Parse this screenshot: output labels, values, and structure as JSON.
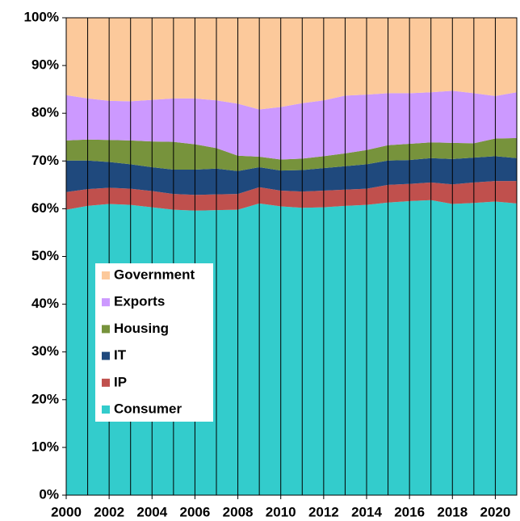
{
  "chart_data": {
    "type": "stacked_area",
    "x": [
      2000,
      2001,
      2002,
      2003,
      2004,
      2005,
      2006,
      2007,
      2008,
      2009,
      2010,
      2011,
      2012,
      2013,
      2014,
      2015,
      2016,
      2017,
      2018,
      2019,
      2020,
      2021
    ],
    "series": [
      {
        "name": "Consumer",
        "color": "#33cccc",
        "values": [
          59.8,
          60.6,
          61.0,
          60.8,
          60.3,
          59.8,
          59.6,
          59.7,
          59.8,
          61.1,
          60.5,
          60.2,
          60.3,
          60.6,
          60.8,
          61.3,
          61.6,
          61.8,
          61.0,
          61.2,
          61.5,
          61.1
        ]
      },
      {
        "name": "IP",
        "color": "#c0504d",
        "values": [
          3.7,
          3.5,
          3.4,
          3.4,
          3.4,
          3.3,
          3.3,
          3.3,
          3.3,
          3.4,
          3.3,
          3.4,
          3.5,
          3.4,
          3.4,
          3.7,
          3.6,
          3.7,
          4.1,
          4.3,
          4.3,
          4.7
        ]
      },
      {
        "name": "IT",
        "color": "#1f497d",
        "values": [
          6.6,
          6.0,
          5.4,
          5.1,
          5.0,
          5.1,
          5.3,
          5.4,
          4.8,
          4.2,
          4.2,
          4.5,
          4.7,
          4.9,
          5.1,
          5.1,
          5.0,
          5.1,
          5.3,
          5.2,
          5.2,
          4.8
        ]
      },
      {
        "name": "Housing",
        "color": "#77933c",
        "values": [
          4.2,
          4.4,
          4.6,
          5.0,
          5.4,
          5.8,
          5.3,
          4.3,
          3.2,
          2.2,
          2.3,
          2.4,
          2.5,
          2.7,
          3.0,
          3.2,
          3.4,
          3.3,
          3.4,
          3.0,
          3.7,
          4.2
        ]
      },
      {
        "name": "Exports",
        "color": "#cc99ff",
        "values": [
          9.5,
          8.6,
          8.2,
          8.2,
          8.7,
          9.1,
          9.6,
          10.0,
          10.9,
          9.9,
          11.0,
          11.6,
          11.7,
          12.1,
          11.6,
          10.9,
          10.6,
          10.5,
          10.9,
          10.5,
          8.9,
          9.6
        ]
      },
      {
        "name": "Government",
        "color": "#fcc99b",
        "values": [
          16.2,
          16.9,
          17.4,
          17.5,
          17.2,
          16.9,
          16.9,
          17.3,
          18.0,
          19.2,
          18.7,
          17.9,
          17.3,
          16.3,
          16.1,
          15.8,
          15.8,
          15.6,
          15.3,
          15.8,
          16.4,
          15.6
        ]
      }
    ],
    "xlim": [
      2000,
      2021
    ],
    "xticks": [
      2000,
      2002,
      2004,
      2006,
      2008,
      2010,
      2012,
      2014,
      2016,
      2018,
      2020
    ],
    "ylim": [
      0,
      100
    ],
    "yticks": [
      {
        "value": 0,
        "label": "0%"
      },
      {
        "value": 10,
        "label": "10%"
      },
      {
        "value": 20,
        "label": "20%"
      },
      {
        "value": 30,
        "label": "30%"
      },
      {
        "value": 40,
        "label": "40%"
      },
      {
        "value": 50,
        "label": "50%"
      },
      {
        "value": 60,
        "label": "60%"
      },
      {
        "value": 70,
        "label": "70%"
      },
      {
        "value": 80,
        "label": "80%"
      },
      {
        "value": 90,
        "label": "90%"
      },
      {
        "value": 100,
        "label": "100%"
      }
    ],
    "grid": true,
    "legend": "center-left"
  }
}
